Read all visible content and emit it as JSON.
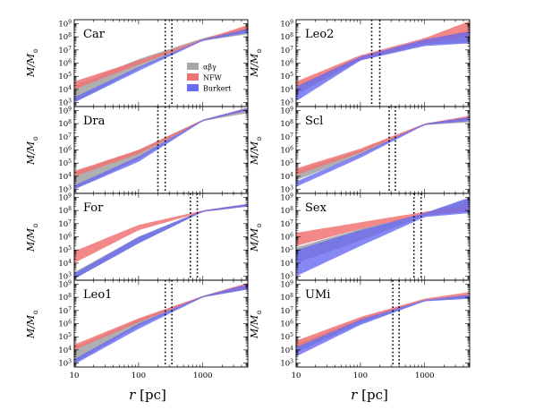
{
  "chart_data": {
    "type": "area",
    "xlabel": "r [pc]",
    "ylabel": "M/M",
    "ylabel_subscript": "⊙",
    "xscale": "log",
    "yscale": "log",
    "xlim": [
      10,
      5000
    ],
    "ylim_exp": [
      2.7,
      9.3
    ],
    "x_ticks": [
      "10",
      "100",
      "1000"
    ],
    "y_tick_exponents": [
      "3",
      "4",
      "5",
      "6",
      "7",
      "8",
      "9"
    ],
    "y_tick_base": "10",
    "legend": {
      "placement": "inside-first-panel-right",
      "entries": [
        {
          "name": "αβγ",
          "color": "#a6a6a6"
        },
        {
          "name": "NFW",
          "color": "#f07373"
        },
        {
          "name": "Burkert",
          "color": "#6a6af2"
        }
      ]
    },
    "colors": {
      "abg": "#a6a6a6",
      "nfw": "#f07373",
      "burkert": "#6a6af2",
      "overlap": "#5a22a8"
    },
    "panels": [
      {
        "name": "Car",
        "vlines": [
          260,
          330
        ],
        "abg": {
          "r": [
            10,
            100,
            1000,
            5000
          ],
          "lo": [
            3.0,
            5.6,
            7.7,
            8.2
          ],
          "hi": [
            4.3,
            6.3,
            7.9,
            8.7
          ]
        },
        "nfw": {
          "r": [
            10,
            100,
            1000,
            5000
          ],
          "lo": [
            4.0,
            5.9,
            7.7,
            8.5
          ],
          "hi": [
            4.6,
            6.2,
            7.8,
            8.9
          ]
        },
        "burkert": {
          "r": [
            10,
            100,
            1000,
            5000
          ],
          "lo": [
            3.0,
            5.4,
            7.7,
            8.3
          ],
          "hi": [
            3.4,
            5.7,
            7.8,
            8.6
          ]
        }
      },
      {
        "name": "Leo2",
        "vlines": [
          150,
          200
        ],
        "abg": {
          "r": [
            10,
            100,
            1000,
            5000
          ],
          "lo": [
            3.6,
            6.2,
            7.4,
            7.6
          ],
          "hi": [
            4.3,
            6.5,
            7.8,
            8.5
          ]
        },
        "nfw": {
          "r": [
            10,
            100,
            1000,
            5000
          ],
          "lo": [
            4.0,
            6.3,
            7.5,
            8.0
          ],
          "hi": [
            4.6,
            6.6,
            7.9,
            9.2
          ]
        },
        "burkert": {
          "r": [
            10,
            100,
            1000,
            5000
          ],
          "lo": [
            3.1,
            6.2,
            7.3,
            7.5
          ],
          "hi": [
            4.2,
            6.5,
            7.8,
            8.4
          ]
        }
      },
      {
        "name": "Dra",
        "vlines": [
          200,
          260
        ],
        "abg": {
          "r": [
            10,
            100,
            1000,
            5000
          ],
          "lo": [
            3.0,
            5.3,
            8.2,
            8.8
          ],
          "hi": [
            4.3,
            6.0,
            8.3,
            9.1
          ]
        },
        "nfw": {
          "r": [
            10,
            100,
            1000,
            5000
          ],
          "lo": [
            4.0,
            5.7,
            8.2,
            9.0
          ],
          "hi": [
            4.4,
            6.0,
            8.3,
            9.2
          ]
        },
        "burkert": {
          "r": [
            10,
            100,
            1000,
            5000
          ],
          "lo": [
            3.0,
            5.1,
            8.2,
            9.0
          ],
          "hi": [
            3.3,
            5.5,
            8.3,
            9.2
          ]
        }
      },
      {
        "name": "Scl",
        "vlines": [
          280,
          350
        ],
        "abg": {
          "r": [
            10,
            100,
            1000,
            5000
          ],
          "lo": [
            3.7,
            5.6,
            7.9,
            8.1
          ],
          "hi": [
            4.4,
            6.0,
            8.0,
            8.5
          ]
        },
        "nfw": {
          "r": [
            10,
            100,
            1000,
            5000
          ],
          "lo": [
            4.1,
            5.8,
            7.9,
            8.3
          ],
          "hi": [
            4.6,
            6.1,
            8.0,
            8.6
          ]
        },
        "burkert": {
          "r": [
            10,
            100,
            1000,
            5000
          ],
          "lo": [
            3.2,
            5.4,
            7.9,
            8.2
          ],
          "hi": [
            3.6,
            5.7,
            8.0,
            8.5
          ]
        }
      },
      {
        "name": "For",
        "vlines": [
          640,
          820
        ],
        "abg": {
          "r": [
            10,
            100,
            1000,
            5000
          ],
          "lo": [
            2.8,
            5.5,
            7.9,
            8.3
          ],
          "hi": [
            3.3,
            6.0,
            8.0,
            8.5
          ]
        },
        "nfw": {
          "r": [
            10,
            100,
            1000,
            5000
          ],
          "lo": [
            4.0,
            6.5,
            7.9,
            8.3
          ],
          "hi": [
            4.9,
            6.9,
            8.0,
            8.5
          ]
        },
        "burkert": {
          "r": [
            10,
            100,
            1000,
            5000
          ],
          "lo": [
            2.8,
            5.5,
            7.9,
            8.3
          ],
          "hi": [
            3.2,
            6.0,
            8.0,
            8.5
          ]
        }
      },
      {
        "name": "Sex",
        "vlines": [
          680,
          880
        ],
        "abg": {
          "r": [
            10,
            100,
            1000,
            5000
          ],
          "lo": [
            4.0,
            5.7,
            7.6,
            7.9
          ],
          "hi": [
            5.2,
            6.6,
            7.8,
            8.9
          ]
        },
        "nfw": {
          "r": [
            10,
            100,
            1000,
            5000
          ],
          "lo": [
            5.3,
            6.6,
            7.7,
            8.0
          ],
          "hi": [
            6.3,
            7.1,
            7.9,
            8.4
          ]
        },
        "burkert": {
          "r": [
            10,
            100,
            1000,
            5000
          ],
          "lo": [
            3.0,
            5.3,
            7.5,
            7.8
          ],
          "hi": [
            5.0,
            6.5,
            7.8,
            9.0
          ]
        }
      },
      {
        "name": "Leo1",
        "vlines": [
          260,
          330
        ],
        "abg": {
          "r": [
            10,
            100,
            1000,
            5000
          ],
          "lo": [
            3.0,
            5.8,
            8.0,
            8.6
          ],
          "hi": [
            4.2,
            6.3,
            8.1,
            8.9
          ]
        },
        "nfw": {
          "r": [
            10,
            100,
            1000,
            5000
          ],
          "lo": [
            4.0,
            6.1,
            8.0,
            8.8
          ],
          "hi": [
            4.4,
            6.4,
            8.1,
            9.1
          ]
        },
        "burkert": {
          "r": [
            10,
            100,
            1000,
            5000
          ],
          "lo": [
            2.9,
            5.6,
            8.0,
            8.6
          ],
          "hi": [
            3.3,
            6.0,
            8.1,
            9.0
          ]
        }
      },
      {
        "name": "UMi",
        "vlines": [
          320,
          400
        ],
        "abg": {
          "r": [
            10,
            100,
            1000,
            5000
          ],
          "lo": [
            3.8,
            6.0,
            7.7,
            7.9
          ],
          "hi": [
            4.4,
            6.4,
            7.8,
            8.2
          ]
        },
        "nfw": {
          "r": [
            10,
            100,
            1000,
            5000
          ],
          "lo": [
            4.2,
            6.2,
            7.8,
            8.1
          ],
          "hi": [
            4.7,
            6.5,
            7.9,
            8.4
          ]
        },
        "burkert": {
          "r": [
            10,
            100,
            1000,
            5000
          ],
          "lo": [
            3.5,
            5.9,
            7.7,
            7.9
          ],
          "hi": [
            4.2,
            6.3,
            7.8,
            8.2
          ]
        }
      }
    ]
  }
}
